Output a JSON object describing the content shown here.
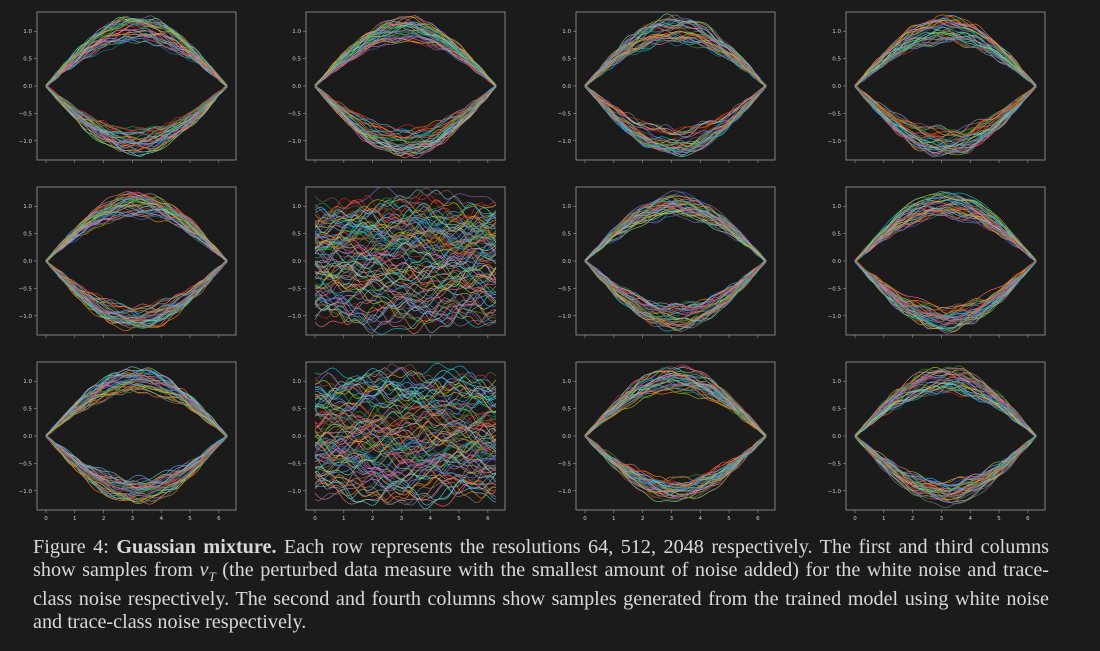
{
  "figure": {
    "rows": 3,
    "cols": 4,
    "ytick_labels": [
      "1.0",
      "0.5",
      "0.0",
      "−0.5",
      "−1.0"
    ],
    "xtick_labels": [
      "0",
      "1",
      "2",
      "3",
      "4",
      "5",
      "6"
    ],
    "panels": [
      {
        "row": 1,
        "col": 1,
        "pattern": "lens"
      },
      {
        "row": 1,
        "col": 2,
        "pattern": "lens"
      },
      {
        "row": 1,
        "col": 3,
        "pattern": "lens"
      },
      {
        "row": 1,
        "col": 4,
        "pattern": "lens"
      },
      {
        "row": 2,
        "col": 1,
        "pattern": "lens"
      },
      {
        "row": 2,
        "col": 2,
        "pattern": "band"
      },
      {
        "row": 2,
        "col": 3,
        "pattern": "lens"
      },
      {
        "row": 2,
        "col": 4,
        "pattern": "lens"
      },
      {
        "row": 3,
        "col": 1,
        "pattern": "lens"
      },
      {
        "row": 3,
        "col": 2,
        "pattern": "band"
      },
      {
        "row": 3,
        "col": 3,
        "pattern": "lens"
      },
      {
        "row": 3,
        "col": 4,
        "pattern": "lens"
      }
    ],
    "curve_colors": [
      "#1f77b4",
      "#ff7f0e",
      "#2ca02c",
      "#d62728",
      "#9467bd",
      "#8c564b",
      "#e377c2",
      "#7f7f7f",
      "#bcbd22",
      "#17becf",
      "#4da6ff",
      "#7fdc7f",
      "#ff6b6b",
      "#a0a0a0",
      "#66cccc"
    ]
  },
  "caption": {
    "label": "Figure 4:",
    "title": "Guassian mixture.",
    "text_1": "Each row represents the resolutions",
    "resolutions": "64, 512, 2048",
    "text_2": "respectively. The first and third columns show samples from",
    "nu_symbol": "ν",
    "nu_subscript": "T",
    "text_3": "(the perturbed data measure with the smallest amount of noise added) for the white noise and trace-class noise respectively. The second and fourth columns show samples generated from the trained model using white noise and trace-class noise respectively."
  }
}
